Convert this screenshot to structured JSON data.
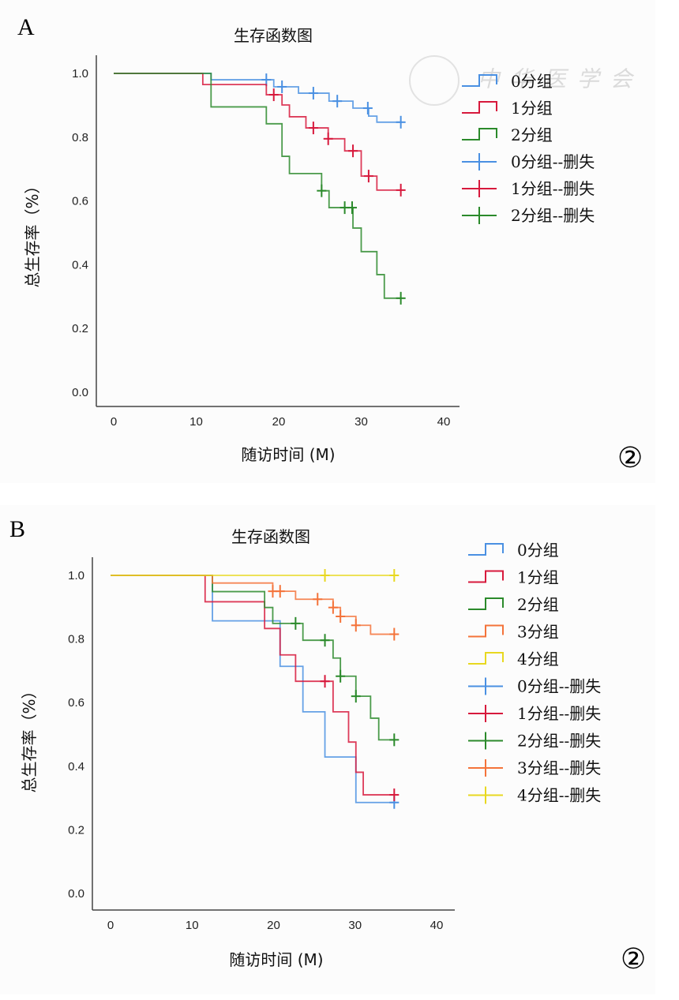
{
  "figure": {
    "watermark_text": "中华医学会",
    "panels": [
      {
        "letter": "A",
        "circled_label": "②"
      },
      {
        "letter": "B",
        "circled_label": "②"
      }
    ]
  },
  "chart_data": [
    {
      "type": "line",
      "subtype": "kaplan-meier step",
      "title": "生存函数图",
      "xlabel": "随访时间 (M)",
      "ylabel": "总生存率（%）",
      "xlim": [
        0,
        40
      ],
      "ylim": [
        0,
        1.0
      ],
      "xticks": [
        "0",
        "10",
        "20",
        "30",
        "40"
      ],
      "yticks": [
        "0.0",
        "0.2",
        "0.4",
        "0.6",
        "0.8",
        "1.0"
      ],
      "grid": false,
      "legend_position": "right",
      "legend": [
        "0分组",
        "1分组",
        "2分组",
        "0分组--删失",
        "1分组--删失",
        "2分组--删失"
      ],
      "series": [
        {
          "name": "0分组",
          "color": "#4a90e2",
          "steps": [
            [
              0,
              1.0
            ],
            [
              11.8,
              0.98
            ],
            [
              19.4,
              0.958
            ],
            [
              22.4,
              0.938
            ],
            [
              26.1,
              0.913
            ],
            [
              29.0,
              0.891
            ],
            [
              30.9,
              0.866
            ],
            [
              31.9,
              0.847
            ]
          ],
          "end": 34.8,
          "censored": [
            18.5,
            20.4,
            24.2,
            27.1,
            30.8,
            34.8
          ]
        },
        {
          "name": "1分组",
          "color": "#d7193c",
          "steps": [
            [
              0,
              1.0
            ],
            [
              10.8,
              0.965
            ],
            [
              18.5,
              0.933
            ],
            [
              20.4,
              0.901
            ],
            [
              21.3,
              0.864
            ],
            [
              23.3,
              0.829
            ],
            [
              26.0,
              0.795
            ],
            [
              28.0,
              0.757
            ],
            [
              30.0,
              0.678
            ],
            [
              31.9,
              0.634
            ]
          ],
          "end": 34.8,
          "censored": [
            19.4,
            24.2,
            26.0,
            29.0,
            30.9,
            34.8
          ]
        },
        {
          "name": "2分组",
          "color": "#2b8a2b",
          "steps": [
            [
              0,
              1.0
            ],
            [
              11.8,
              0.895
            ],
            [
              18.5,
              0.842
            ],
            [
              20.4,
              0.74
            ],
            [
              21.3,
              0.686
            ],
            [
              25.2,
              0.632
            ],
            [
              26.1,
              0.579
            ],
            [
              29.0,
              0.515
            ],
            [
              30.0,
              0.441
            ],
            [
              31.9,
              0.369
            ],
            [
              32.8,
              0.295
            ]
          ],
          "end": 34.8,
          "censored": [
            25.2,
            28.0,
            28.9,
            34.8
          ]
        }
      ]
    },
    {
      "type": "line",
      "subtype": "kaplan-meier step",
      "title": "生存函数图",
      "xlabel": "随访时间 (M)",
      "ylabel": "总生存率（%）",
      "xlim": [
        0,
        40
      ],
      "ylim": [
        0,
        1.0
      ],
      "xticks": [
        "0",
        "10",
        "20",
        "30",
        "40"
      ],
      "yticks": [
        "0.0",
        "0.2",
        "0.4",
        "0.6",
        "0.8",
        "1.0"
      ],
      "grid": false,
      "legend_position": "right",
      "legend": [
        "0分组",
        "1分组",
        "2分组",
        "3分组",
        "4分组",
        "0分组--删失",
        "1分组--删失",
        "2分组--删失",
        "3分组--删失",
        "4分组--删失"
      ],
      "series": [
        {
          "name": "0分组",
          "color": "#4a90e2",
          "steps": [
            [
              0,
              1.0
            ],
            [
              12.5,
              0.857
            ],
            [
              20.8,
              0.714
            ],
            [
              23.6,
              0.571
            ],
            [
              26.3,
              0.429
            ],
            [
              30.1,
              0.286
            ]
          ],
          "end": 34.8,
          "censored": [
            34.8
          ]
        },
        {
          "name": "1分组",
          "color": "#d7193c",
          "steps": [
            [
              0,
              1.0
            ],
            [
              11.6,
              0.917
            ],
            [
              18.9,
              0.833
            ],
            [
              20.8,
              0.75
            ],
            [
              22.7,
              0.667
            ],
            [
              27.3,
              0.571
            ],
            [
              29.2,
              0.476
            ],
            [
              30.1,
              0.381
            ],
            [
              31.0,
              0.31
            ]
          ],
          "end": 34.8,
          "censored": [
            26.3,
            34.8
          ]
        },
        {
          "name": "2分组",
          "color": "#2b8a2b",
          "steps": [
            [
              0,
              1.0
            ],
            [
              12.5,
              0.949
            ],
            [
              18.9,
              0.899
            ],
            [
              19.9,
              0.849
            ],
            [
              23.6,
              0.796
            ],
            [
              27.3,
              0.74
            ],
            [
              28.2,
              0.683
            ],
            [
              30.1,
              0.62
            ],
            [
              31.9,
              0.551
            ],
            [
              32.9,
              0.483
            ]
          ],
          "end": 34.8,
          "censored": [
            22.7,
            26.3,
            28.2,
            30.1,
            34.8
          ]
        },
        {
          "name": "3分组",
          "color": "#f4733a",
          "steps": [
            [
              0,
              1.0
            ],
            [
              12.5,
              0.976
            ],
            [
              19.9,
              0.95
            ],
            [
              22.7,
              0.925
            ],
            [
              27.3,
              0.899
            ],
            [
              28.2,
              0.871
            ],
            [
              30.1,
              0.843
            ],
            [
              31.9,
              0.815
            ]
          ],
          "end": 34.8,
          "censored": [
            19.9,
            20.8,
            25.4,
            27.3,
            28.2,
            30.1,
            34.8
          ]
        },
        {
          "name": "4分组",
          "color": "#e8d820",
          "steps": [
            [
              0,
              1.0
            ]
          ],
          "end": 34.8,
          "censored": [
            26.3,
            34.8
          ]
        }
      ]
    }
  ]
}
